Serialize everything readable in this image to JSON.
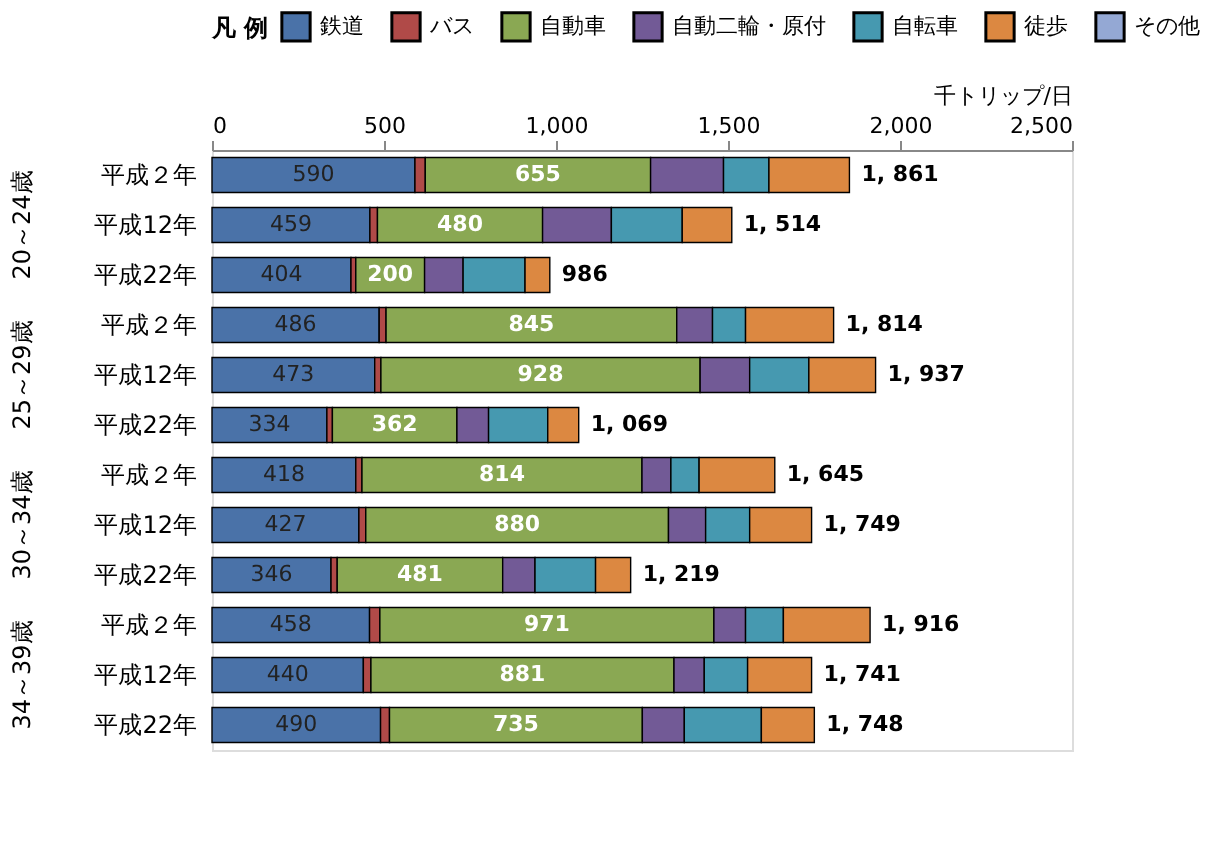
{
  "chart_data": {
    "type": "bar",
    "orientation": "horizontal",
    "stacked": true,
    "xlabel": "千トリップ/日",
    "legend_title": "凡 例",
    "legend": "top",
    "grid": false,
    "categories": [
      "平成２年",
      "平成12年",
      "平成22年",
      "平成２年",
      "平成12年",
      "平成22年",
      "平成２年",
      "平成12年",
      "平成22年",
      "平成２年",
      "平成12年",
      "平成22年"
    ],
    "xlim": [
      0,
      2500
    ],
    "xticks": [
      0,
      {
        "value": 500,
        "label": "500"
      },
      {
        "value": 1000,
        "label": "1,000"
      },
      {
        "value": 1500,
        "label": "1,500"
      },
      {
        "value": 2000,
        "label": "2,000"
      },
      {
        "value": 2500,
        "label": "2,500"
      }
    ],
    "series": [
      {
        "name": "鉄道",
        "color": "#4a72a8",
        "values": [
          590,
          459,
          404,
          486,
          473,
          334,
          418,
          427,
          346,
          458,
          440,
          490
        ],
        "value_labels": [
          "590",
          "459",
          "404",
          "486",
          "473",
          "334",
          "418",
          "427",
          "346",
          "458",
          "440",
          "490"
        ]
      },
      {
        "name": "バス",
        "color": "#b04a48",
        "values": [
          30,
          22,
          14,
          20,
          18,
          16,
          18,
          20,
          18,
          30,
          22,
          26
        ]
      },
      {
        "name": "自動車",
        "color": "#8aa853",
        "values": [
          655,
          480,
          200,
          845,
          928,
          362,
          814,
          880,
          481,
          971,
          881,
          735
        ],
        "value_labels": [
          "655",
          "480",
          "200",
          "845",
          "928",
          "362",
          "814",
          "880",
          "481",
          "971",
          "881",
          "735"
        ]
      },
      {
        "name": "自動二輪・原付",
        "color": "#725a96",
        "values": [
          212,
          200,
          112,
          104,
          144,
          92,
          84,
          108,
          94,
          92,
          88,
          122
        ]
      },
      {
        "name": "自転車",
        "color": "#4699b0",
        "values": [
          132,
          206,
          180,
          96,
          172,
          172,
          82,
          128,
          176,
          110,
          126,
          224
        ]
      },
      {
        "name": "徒歩",
        "color": "#dc8841",
        "values": [
          234,
          144,
          72,
          256,
          194,
          90,
          220,
          180,
          102,
          252,
          186,
          154
        ]
      },
      {
        "name": "その他",
        "color": "#94a8d4",
        "values": [
          null,
          null,
          null,
          null,
          null,
          null,
          null,
          null,
          null,
          null,
          null,
          null
        ]
      }
    ],
    "totals": [
      "1, 861",
      "1, 514",
      "986",
      "1, 814",
      "1, 937",
      "1, 069",
      "1, 645",
      "1, 749",
      "1, 219",
      "1, 916",
      "1, 741",
      "1, 748"
    ],
    "annotations": [
      "20～24歳",
      "25～29歳",
      "30～34歳",
      "34～39歳"
    ]
  }
}
